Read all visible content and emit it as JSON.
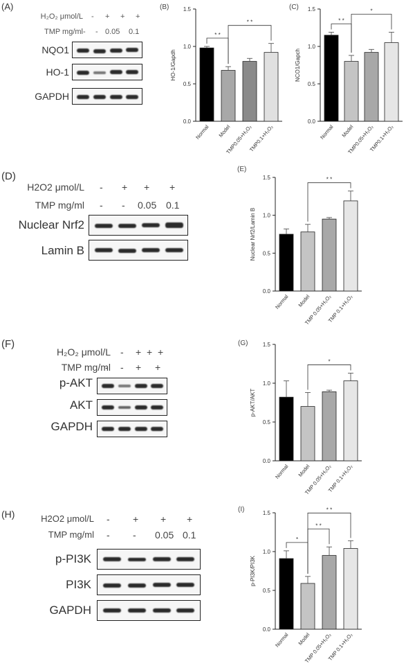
{
  "panels": {
    "A": {
      "label": "(A)",
      "rows": [
        {
          "name": "H₂O₂ μmol/L",
          "values": [
            "-",
            "+",
            "+",
            "+"
          ]
        },
        {
          "name": "TMP mg/ml",
          "values": [
            "-",
            "-",
            "0.05",
            "0.1"
          ]
        }
      ],
      "blots": [
        "NQO1",
        "HO-1",
        "GAPDH"
      ]
    },
    "D": {
      "label": "(D)",
      "rows": [
        {
          "name": "H2O2 μmol/L",
          "values": [
            "-",
            "+",
            "+",
            "+"
          ]
        },
        {
          "name": "TMP mg/ml",
          "values": [
            "-",
            "-",
            "0.05",
            "0.1"
          ]
        }
      ],
      "blots": [
        "Nuclear Nrf2",
        "Lamin B"
      ]
    },
    "F": {
      "label": "(F)",
      "rows": [
        {
          "name": "H₂O₂ μmol/L",
          "values": [
            "-",
            "+",
            "+",
            "+"
          ]
        },
        {
          "name": "TMP mg/ml",
          "values": [
            "-",
            "-",
            "+",
            "+"
          ]
        }
      ],
      "blots": [
        "p-AKT",
        "AKT",
        "GAPDH"
      ]
    },
    "H": {
      "label": "(H)",
      "rows": [
        {
          "name": "H2O2 μmol/L",
          "values": [
            "-",
            "+",
            "+",
            "+"
          ]
        },
        {
          "name": "TMP mg/ml",
          "values": [
            "-",
            "-",
            "0.05",
            "0.1"
          ]
        }
      ],
      "blots": [
        "p-PI3K",
        "PI3K",
        "GAPDH"
      ]
    }
  },
  "chart_data": [
    {
      "id": "B",
      "label": "(B)",
      "type": "bar",
      "categories": [
        "Normal",
        "Model",
        "TMP0.05+H₂O₂",
        "TMP0.1+H₂O₂"
      ],
      "values": [
        0.98,
        0.68,
        0.8,
        0.92
      ],
      "errors": [
        0.02,
        0.05,
        0.04,
        0.12
      ],
      "colors": [
        "#000000",
        "#a8a8a8",
        "#8a8a8a",
        "#e0e0e0"
      ],
      "ylabel": "HO-1/Gapdh",
      "ylim": [
        0,
        1.5
      ],
      "yticks": [
        "0.0",
        "0.5",
        "1.0",
        "1.5"
      ],
      "significance": [
        {
          "from": 0,
          "to": 1,
          "text": "* *"
        },
        {
          "from": 1,
          "to": 3,
          "text": "* *"
        }
      ]
    },
    {
      "id": "C",
      "label": "(C)",
      "type": "bar",
      "categories": [
        "Normal",
        "Model",
        "TMP0.05+H₂O₂",
        "TMP0.1+H₂O₂"
      ],
      "values": [
        1.15,
        0.8,
        0.92,
        1.05
      ],
      "errors": [
        0.04,
        0.08,
        0.04,
        0.14
      ],
      "colors": [
        "#000000",
        "#c4c4c4",
        "#a8a8a8",
        "#e6e6e6"
      ],
      "ylabel": "NCO1/Gapch",
      "ylim": [
        0,
        1.5
      ],
      "yticks": [
        "0.0",
        "0.5",
        "1.0",
        "1.5"
      ],
      "significance": [
        {
          "from": 0,
          "to": 1,
          "text": "* *"
        },
        {
          "from": 1,
          "to": 3,
          "text": "*"
        }
      ]
    },
    {
      "id": "E",
      "label": "(E)",
      "type": "bar",
      "categories": [
        "Normal",
        "Model",
        "TMP 0.05+H₂O₂",
        "TMP 0.1+H₂O₂"
      ],
      "values": [
        0.75,
        0.78,
        0.95,
        1.19
      ],
      "errors": [
        0.07,
        0.1,
        0.02,
        0.13
      ],
      "colors": [
        "#000000",
        "#c4c4c4",
        "#a8a8a8",
        "#e6e6e6"
      ],
      "ylabel": "Nuclear Nrf2/Lamin B",
      "ylim": [
        0,
        1.5
      ],
      "yticks": [
        "0.0",
        "0.5",
        "1.0",
        "1.5"
      ],
      "significance": [
        {
          "from": 1,
          "to": 3,
          "text": "* *"
        }
      ]
    },
    {
      "id": "G",
      "label": "(G)",
      "type": "bar",
      "categories": [
        "Normal",
        "Model",
        "TMP 0.05+H₂O₂",
        "TMP 0.1+H₂O₂"
      ],
      "values": [
        0.82,
        0.7,
        0.89,
        1.03
      ],
      "errors": [
        0.21,
        0.18,
        0.02,
        0.1
      ],
      "colors": [
        "#000000",
        "#c4c4c4",
        "#a8a8a8",
        "#e6e6e6"
      ],
      "ylabel": "p-AKT/AKT",
      "ylim": [
        0,
        1.5
      ],
      "yticks": [
        "0.0",
        "0.5",
        "1.0",
        "1.5"
      ],
      "significance": [
        {
          "from": 1,
          "to": 3,
          "text": "*"
        }
      ]
    },
    {
      "id": "I",
      "label": "(I)",
      "type": "bar",
      "categories": [
        "Normal",
        "Model",
        "TMP 0.05+H₂O₂",
        "TMP 0.1+H₂O₂"
      ],
      "values": [
        0.91,
        0.59,
        0.95,
        1.04
      ],
      "errors": [
        0.1,
        0.09,
        0.11,
        0.1
      ],
      "colors": [
        "#000000",
        "#c4c4c4",
        "#a8a8a8",
        "#e6e6e6"
      ],
      "ylabel": "p-PI3K/PI3K",
      "ylim": [
        0,
        1.5
      ],
      "yticks": [
        "0.0",
        "0.5",
        "1.0",
        "1.5"
      ],
      "significance": [
        {
          "from": 0,
          "to": 1,
          "text": "*"
        },
        {
          "from": 1,
          "to": 2,
          "text": "* *"
        },
        {
          "from": 1,
          "to": 3,
          "text": "* *"
        }
      ]
    }
  ]
}
